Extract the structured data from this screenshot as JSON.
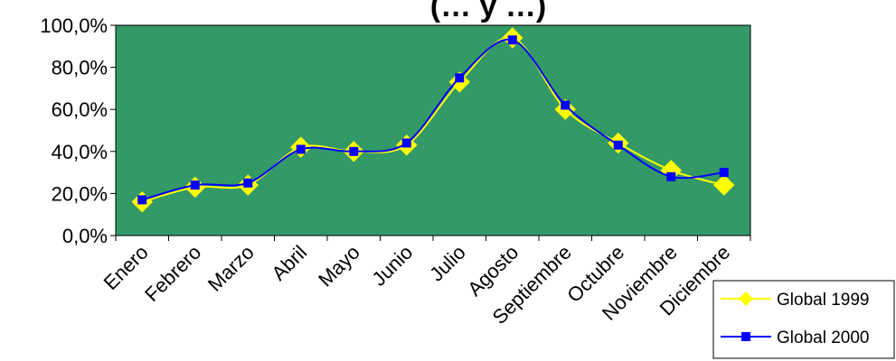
{
  "chart_data": {
    "type": "line",
    "title": "(… y …)",
    "categories": [
      "Enero",
      "Febrero",
      "Marzo",
      "Abril",
      "Mayo",
      "Junio",
      "Julio",
      "Agosto",
      "Septiembre",
      "Octubre",
      "Noviembre",
      "Diciembre"
    ],
    "y_tick_labels": [
      "0,0%",
      "20,0%",
      "40,0%",
      "60,0%",
      "80,0%",
      "100,0%"
    ],
    "ylim": [
      0,
      100
    ],
    "yticks": [
      0,
      20,
      40,
      60,
      80,
      100
    ],
    "grid": false,
    "legend_position": "bottom-right",
    "plot_background": "#339966",
    "series": [
      {
        "name": "Global 1999",
        "color": "#ffff00",
        "marker": "diamond",
        "values": [
          16,
          23,
          24,
          42,
          40,
          43,
          73,
          94,
          60,
          44,
          31,
          24
        ]
      },
      {
        "name": "Global 2000",
        "color": "#0000ff",
        "marker": "square",
        "values": [
          17,
          24,
          25,
          41,
          40,
          44,
          75,
          93,
          62,
          43,
          28,
          30
        ]
      }
    ]
  }
}
